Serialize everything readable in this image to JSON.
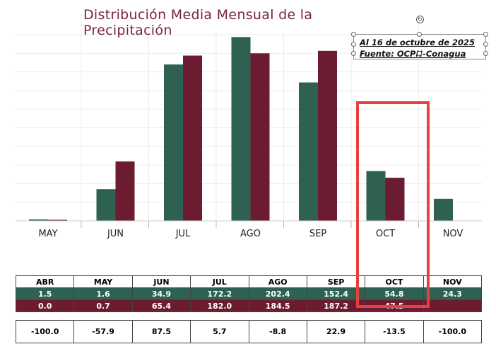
{
  "chart_data": {
    "type": "bar",
    "title": "Distribución Media Mensual de la Precipitación",
    "categories": [
      "MAY",
      "JUN",
      "JUL",
      "AGO",
      "SEP",
      "OCT",
      "NOV"
    ],
    "series": [
      {
        "values": [
          1.6,
          34.9,
          172.2,
          202.4,
          152.4,
          54.8,
          24.3
        ],
        "color": "#2e6152"
      },
      {
        "values": [
          0.7,
          65.4,
          182.0,
          184.5,
          187.2,
          47.5,
          null
        ],
        "color": "#6b1c30"
      }
    ],
    "ylim": [
      0,
      205
    ],
    "grid": true,
    "annotations": [
      "Al 16 de octubre de 2025",
      "Fuente: OCPN-Conagua"
    ],
    "highlight_category": "OCT"
  },
  "table": {
    "headers": [
      "ABR",
      "MAY",
      "JUN",
      "JUL",
      "AGO",
      "SEP",
      "OCT",
      "NOV"
    ],
    "row_green": [
      "1.5",
      "1.6",
      "34.9",
      "172.2",
      "202.4",
      "152.4",
      "54.8",
      "24.3"
    ],
    "row_maroon": [
      "0.0",
      "0.7",
      "65.4",
      "182.0",
      "184.5",
      "187.2",
      "47.5",
      ""
    ],
    "diff_row": [
      "-100.0",
      "-57.9",
      "87.5",
      "5.7",
      "-8.8",
      "22.9",
      "-13.5",
      "-100.0"
    ]
  },
  "colors": {
    "green": "#2e6152",
    "maroon": "#6b1c30",
    "title": "#7a2442",
    "highlight": "#e8403c"
  }
}
